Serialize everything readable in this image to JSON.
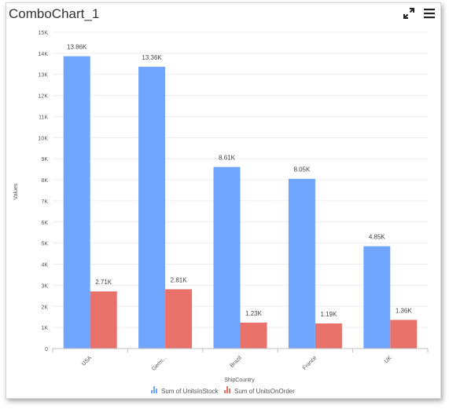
{
  "widget": {
    "title": "ComboChart_1",
    "expand_icon": "expand-icon",
    "menu_icon": "hamburger-menu-icon"
  },
  "chart_data": {
    "type": "bar",
    "categories": [
      "USA",
      "Germ...",
      "Brazil",
      "France",
      "UK"
    ],
    "series": [
      {
        "name": "Sum of UnitsInStock",
        "values": [
          13860,
          13360,
          8610,
          8050,
          4850
        ],
        "labels": [
          "13.86K",
          "13.36K",
          "8.61K",
          "8.05K",
          "4.85K"
        ],
        "color": "#6fa5fd"
      },
      {
        "name": "Sum of UnitsOnOrder",
        "values": [
          2710,
          2810,
          1230,
          1190,
          1360
        ],
        "labels": [
          "2.71K",
          "2.81K",
          "1.23K",
          "1.19K",
          "1.36K"
        ],
        "color": "#e8726a"
      }
    ],
    "xlabel": "ShipCountry",
    "ylabel": "Values",
    "ylim": [
      0,
      15000
    ],
    "yticks": [
      "0",
      "1K",
      "2K",
      "3K",
      "4K",
      "5K",
      "6K",
      "7K",
      "8K",
      "9K",
      "10K",
      "11K",
      "12K",
      "13K",
      "14K",
      "15K"
    ],
    "grid": true,
    "legend_position": "bottom"
  }
}
